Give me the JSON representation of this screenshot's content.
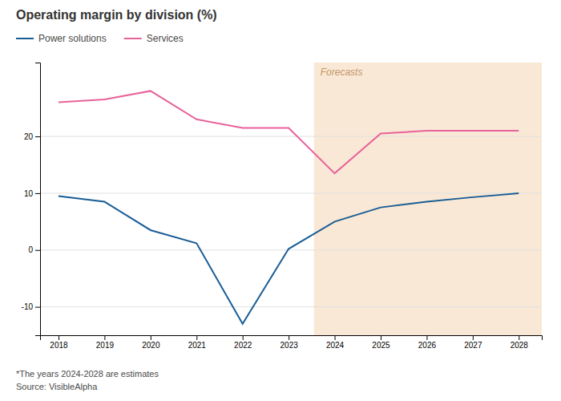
{
  "chart_data": {
    "type": "line",
    "title": "Operating margin by division (%)",
    "x": [
      2018,
      2019,
      2020,
      2021,
      2022,
      2023,
      2024,
      2025,
      2026,
      2027,
      2028
    ],
    "series": [
      {
        "name": "Power solutions",
        "color": "#1a5e96",
        "values": [
          9.5,
          8.5,
          3.5,
          1.2,
          -13.0,
          0.2,
          5.0,
          7.5,
          8.5,
          9.3,
          10.0
        ]
      },
      {
        "name": "Services",
        "color": "#e8629a",
        "values": [
          26.0,
          26.5,
          28.0,
          23.0,
          21.5,
          21.5,
          13.5,
          20.5,
          21.0,
          21.0,
          21.0
        ]
      }
    ],
    "xlim": [
      2017.6,
      2028.5
    ],
    "xticks": [
      2018,
      2019,
      2020,
      2021,
      2022,
      2023,
      2024,
      2025,
      2026,
      2027,
      2028
    ],
    "ylim": [
      -15,
      33
    ],
    "yticks": [
      -10,
      0,
      10,
      20
    ],
    "grid": true,
    "legend": "top-left",
    "forecast": {
      "start": 2024,
      "color": "#f9e8d5",
      "label": "Forecasts"
    },
    "footnotes": [
      "*The years 2024-2028 are estimates",
      "Source: VisibleAlpha"
    ]
  }
}
